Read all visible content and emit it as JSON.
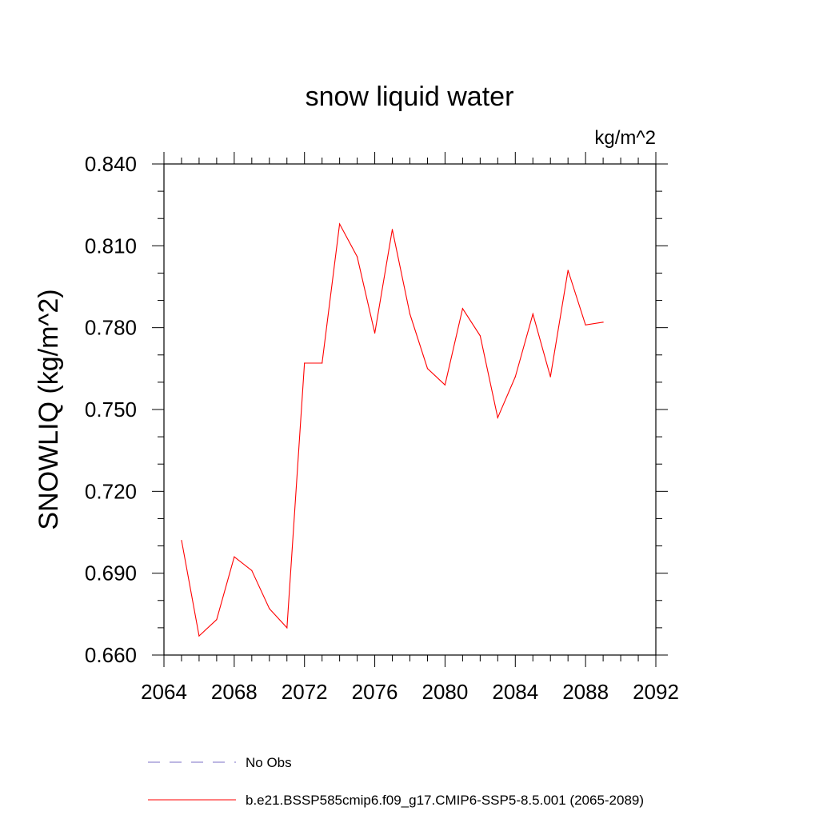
{
  "chart_data": {
    "type": "line",
    "title": "snow liquid water",
    "units": "kg/m^2",
    "ylabel": "SNOWLIQ  (kg/m^2)",
    "xlabel": "",
    "xlim": [
      2064,
      2092
    ],
    "ylim": [
      0.66,
      0.84
    ],
    "x_ticks": [
      "2064",
      "2068",
      "2072",
      "2076",
      "2080",
      "2084",
      "2088",
      "2092"
    ],
    "y_ticks": [
      "0.660",
      "0.690",
      "0.720",
      "0.750",
      "0.780",
      "0.810",
      "0.840"
    ],
    "grid": false,
    "series": [
      {
        "name": "b.e21.BSSP585cmip6.f09_g17.CMIP6-SSP5-8.5.001 (2065-2089)",
        "color": "#ff0000",
        "x": [
          2065,
          2066,
          2067,
          2068,
          2069,
          2070,
          2071,
          2072,
          2073,
          2074,
          2075,
          2076,
          2077,
          2078,
          2079,
          2080,
          2081,
          2082,
          2083,
          2084,
          2085,
          2086,
          2087,
          2088,
          2089
        ],
        "values": [
          0.702,
          0.667,
          0.673,
          0.696,
          0.691,
          0.677,
          0.67,
          0.767,
          0.767,
          0.818,
          0.806,
          0.778,
          0.816,
          0.785,
          0.765,
          0.759,
          0.787,
          0.777,
          0.747,
          0.762,
          0.785,
          0.762,
          0.801,
          0.781,
          0.782
        ]
      }
    ],
    "legend": {
      "placement": "bottom",
      "entries": [
        {
          "label": "No Obs",
          "color": "#7b6fc7",
          "style": "dashed"
        },
        {
          "label": "b.e21.BSSP585cmip6.f09_g17.CMIP6-SSP5-8.5.001 (2065-2089)",
          "color": "#ff0000",
          "style": "solid"
        }
      ]
    }
  }
}
